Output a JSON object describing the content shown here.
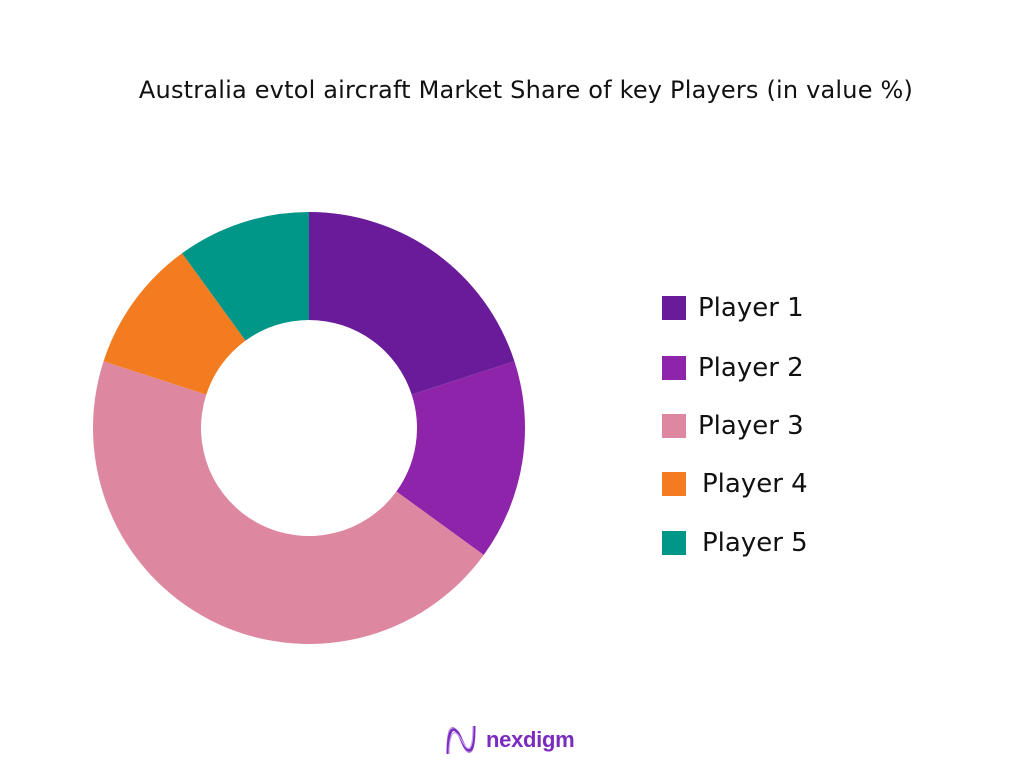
{
  "chart_data": {
    "type": "pie",
    "variant": "donut",
    "title": "Australia evtol aircraft Market Share of key Players (in value %)",
    "categories": [
      "Player 1",
      "Player 2",
      "Player 3",
      "Player 4",
      "Player 5"
    ],
    "values": [
      20,
      15,
      45,
      10,
      10
    ],
    "unit": "%",
    "colors": [
      "#6a1b9a",
      "#8e24aa",
      "#de87a0",
      "#f47c20",
      "#009688"
    ],
    "legend_position": "right",
    "start_angle": "top, clockwise"
  },
  "title": "Australia evtol aircraft Market Share of key Players (in value %)",
  "legend": [
    {
      "label": "Player 1",
      "color": "#6a1b9a"
    },
    {
      "label": "Player 2",
      "color": "#8e24aa"
    },
    {
      "label": "Player 3",
      "color": "#de87a0"
    },
    {
      "label": "Player 4",
      "color": "#f47c20"
    },
    {
      "label": "Player 5",
      "color": "#009688"
    }
  ],
  "logo": {
    "text": "nexdigm"
  }
}
